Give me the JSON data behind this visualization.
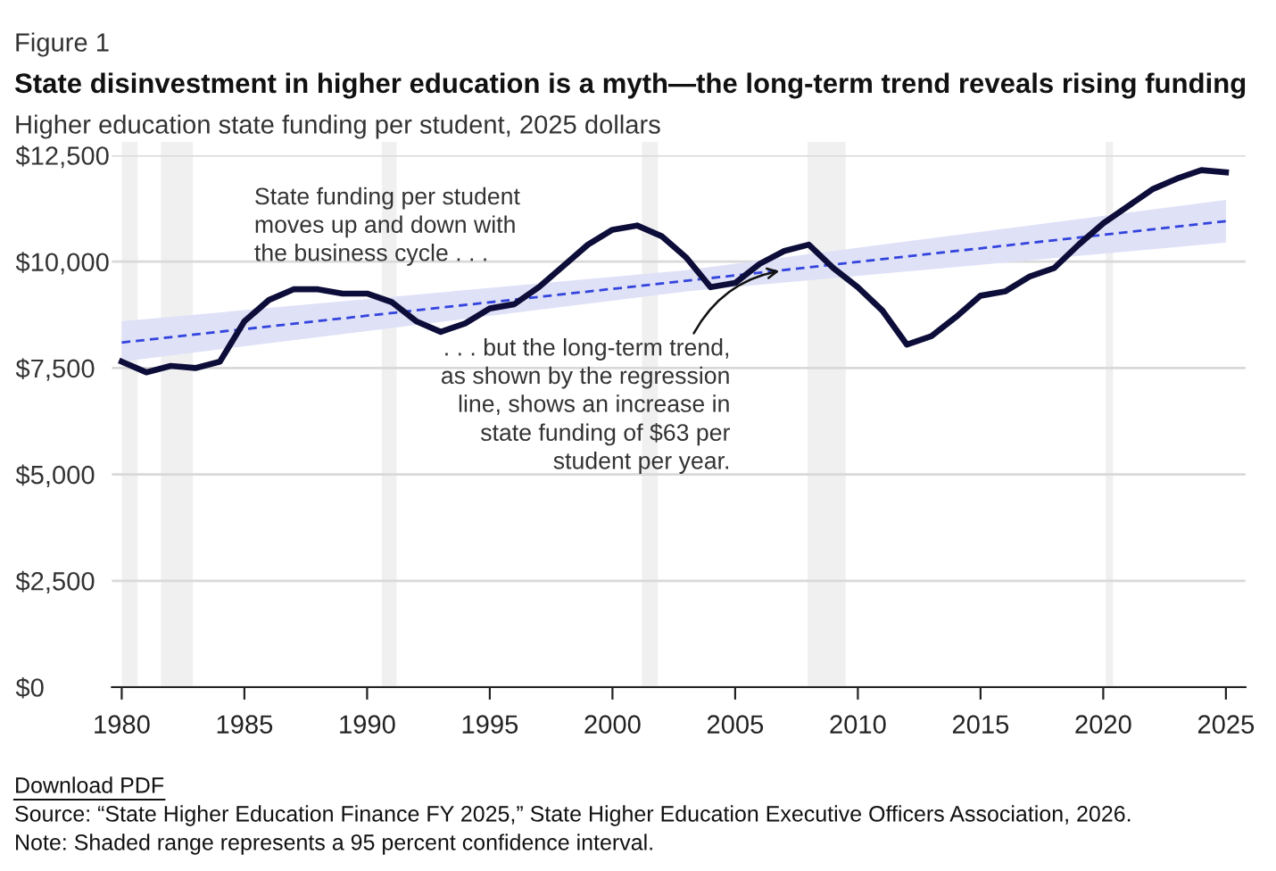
{
  "chart_data": {
    "type": "line",
    "title": "State disinvestment in higher education is a myth—the long-term trend reveals rising funding",
    "subtitle": "Higher education state funding per student, 2025 dollars",
    "x": [
      1980,
      1981,
      1982,
      1983,
      1984,
      1985,
      1986,
      1987,
      1988,
      1989,
      1990,
      1991,
      1992,
      1993,
      1994,
      1995,
      1996,
      1997,
      1998,
      1999,
      2000,
      2001,
      2002,
      2003,
      2004,
      2005,
      2006,
      2007,
      2008,
      2009,
      2010,
      2011,
      2012,
      2013,
      2014,
      2015,
      2016,
      2017,
      2018,
      2019,
      2020,
      2021,
      2022,
      2023,
      2024,
      2025
    ],
    "series": [
      {
        "color": "#3344dd",
        "line_style": "dashed",
        "x": [
          1980,
          2003,
          2025
        ],
        "values": [
          8100,
          9550,
          10950
        ],
        "lower": [
          7650,
          9300,
          10450
        ],
        "upper": [
          8600,
          9800,
          11450
        ]
      },
      {
        "color": "#0d0d3a",
        "line_style": "solid",
        "values": [
          7650,
          7400,
          7550,
          7500,
          7650,
          8600,
          9100,
          9350,
          9350,
          9250,
          9250,
          9050,
          8600,
          8350,
          8550,
          8900,
          9000,
          9400,
          9900,
          10400,
          10750,
          10850,
          10600,
          10100,
          9400,
          9500,
          9950,
          10250,
          10400,
          9850,
          9400,
          8850,
          8050,
          8250,
          8700,
          9200,
          9300,
          9650,
          9850,
          10400,
          10900,
          11300,
          11700,
          11950,
          12150,
          12100
        ]
      }
    ],
    "bands": [
      {
        "axis": "x",
        "from": 1980.0,
        "to": 1980.65,
        "color": "#f0f0f0"
      },
      {
        "axis": "x",
        "from": 1981.6,
        "to": 1982.9,
        "color": "#f0f0f0"
      },
      {
        "axis": "x",
        "from": 1990.6,
        "to": 1991.2,
        "color": "#f0f0f0"
      },
      {
        "axis": "x",
        "from": 2001.2,
        "to": 2001.85,
        "color": "#f0f0f0"
      },
      {
        "axis": "x",
        "from": 2007.95,
        "to": 2009.5,
        "color": "#f0f0f0"
      },
      {
        "axis": "x",
        "from": 2020.1,
        "to": 2020.4,
        "color": "#f0f0f0"
      }
    ],
    "xlim": [
      1979.6,
      2025.8
    ],
    "xticks": [
      1980,
      1985,
      1990,
      1995,
      2000,
      2005,
      2010,
      2015,
      2020,
      2025
    ],
    "ylim": [
      0,
      12500
    ],
    "yticks": [
      {
        "value": 0,
        "label": "$0"
      },
      {
        "value": 2500,
        "label": "$2,500"
      },
      {
        "value": 5000,
        "label": "$5,000"
      },
      {
        "value": 7500,
        "label": "$7,500"
      },
      {
        "value": 10000,
        "label": "$10,000"
      },
      {
        "value": 12500,
        "label": "$12,500"
      }
    ],
    "grid": "y",
    "legend": false,
    "annotations": [
      "Figure 1",
      "State funding per student\nmoves up and down with\nthe business cycle . . .",
      {
        "text": ". . . but the long-term trend,\nas shown by the regression\nline, shows an increase in\nstate funding of $63 per\nstudent per year.",
        "x": 2007,
        "y": 9800
      },
      "Download PDF",
      "Source: “State Higher Education Finance FY 2025,” State Higher Education Executive Officers Association, 2026.",
      "Note: Shaded range represents a 95 percent confidence interval."
    ]
  }
}
